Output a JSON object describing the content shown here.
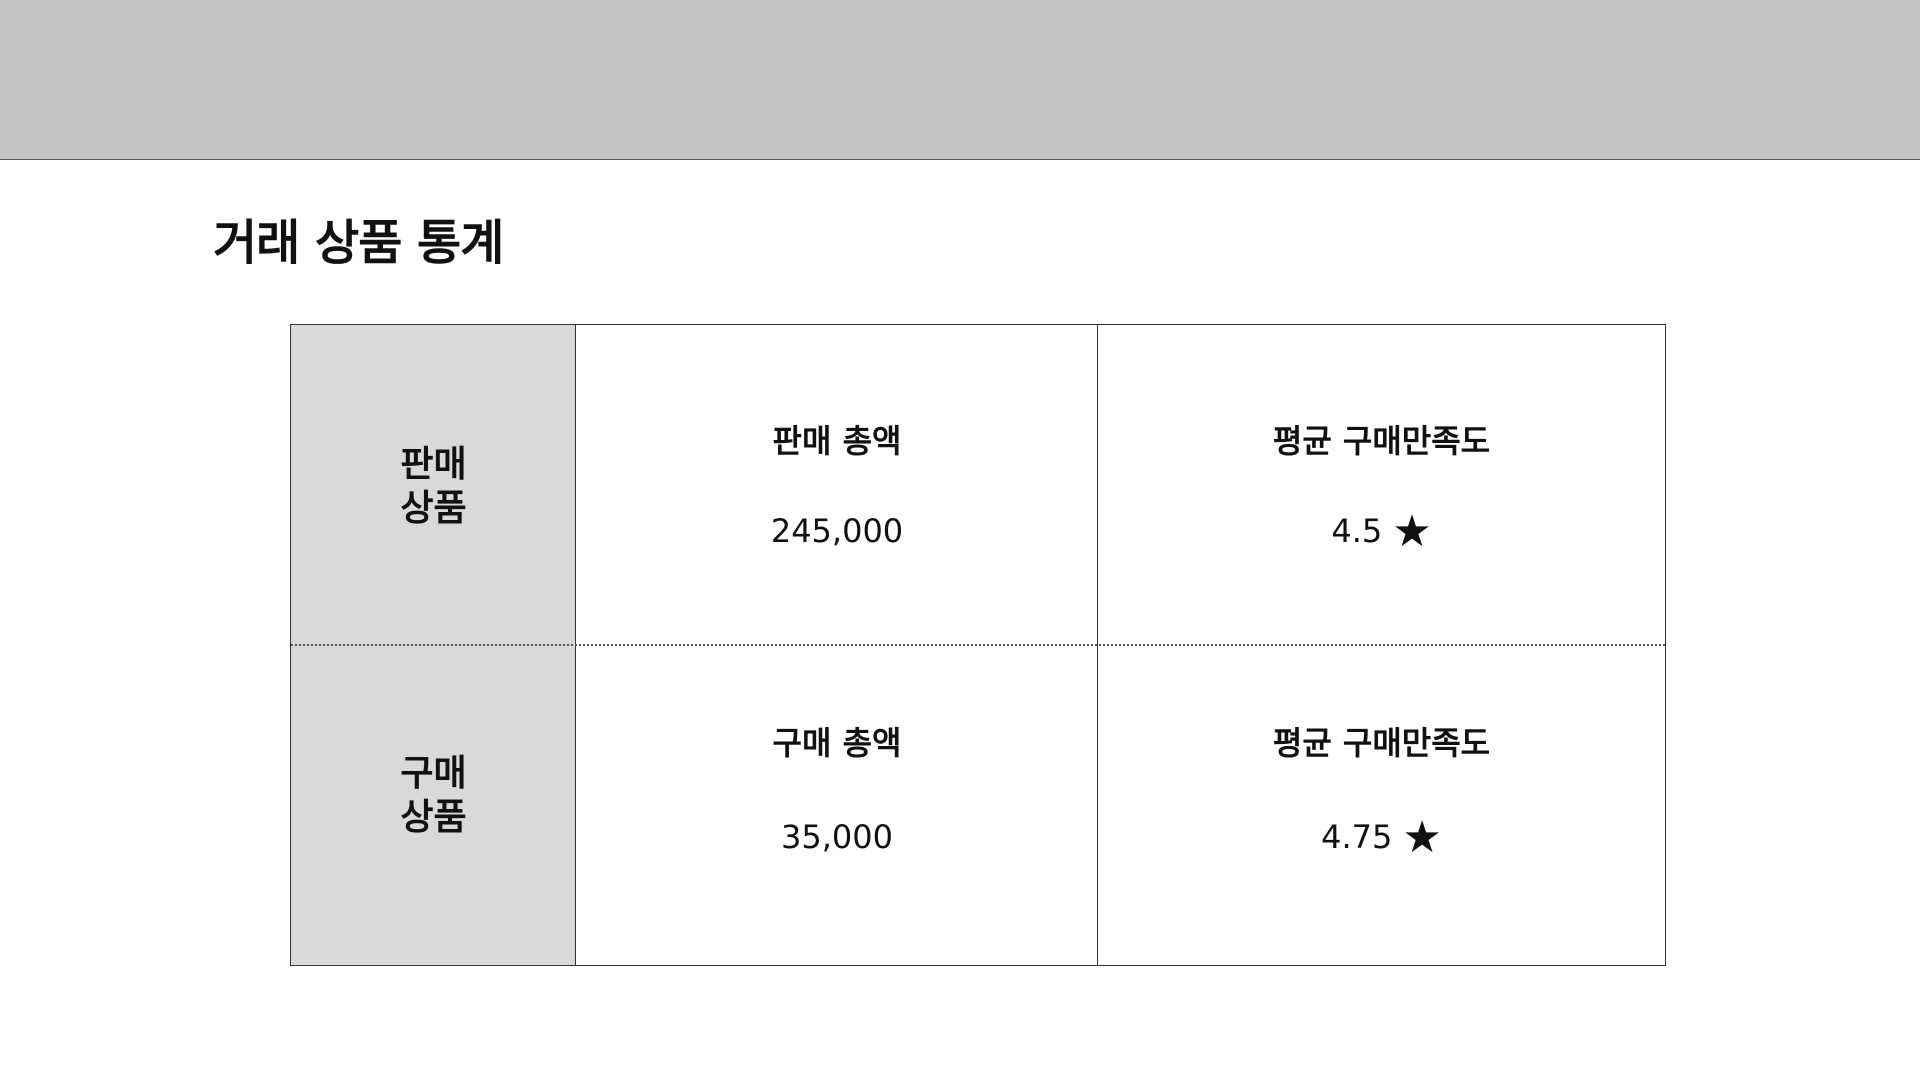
{
  "page_title": "거래 상품 통계",
  "rows": [
    {
      "label_line1": "판매",
      "label_line2": "상품",
      "amount_heading": "판매 총액",
      "amount_value": "245,000",
      "rating_heading": "평균 구매만족도",
      "rating_value": "4.5",
      "rating_icon": "★"
    },
    {
      "label_line1": "구매",
      "label_line2": "상품",
      "amount_heading": "구매 총액",
      "amount_value": "35,000",
      "rating_heading": "평균 구매만족도",
      "rating_value": "4.75",
      "rating_icon": "★"
    }
  ],
  "colors": {
    "header_bar": "#c4c4c4",
    "label_column": "#d9d9d9",
    "border": "#333333"
  }
}
